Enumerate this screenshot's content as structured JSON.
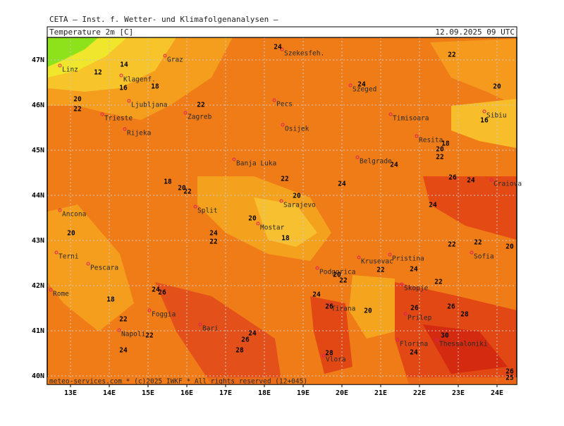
{
  "header": {
    "institute": "CETA — Inst. f. Wetter- und Klimafolgenanalysen —",
    "title": "Temperature 2m [C]",
    "valid_time": "12.09.2025 09 UTC",
    "footer": "meteo-services.com * (c)2025 IWKF * All rights reserved (12+045)"
  },
  "map": {
    "longitude_labels": [
      "13E",
      "14E",
      "15E",
      "16E",
      "17E",
      "18E",
      "19E",
      "20E",
      "21E",
      "22E",
      "23E",
      "24E"
    ],
    "latitude_labels": [
      "47N",
      "46N",
      "45N",
      "44N",
      "43N",
      "42N",
      "41N",
      "40N"
    ],
    "cities": [
      "Linz",
      "Graz",
      "Szekesfeh.",
      "Klagenf.",
      "Ljubljana",
      "Zagreb",
      "Trieste",
      "Rijeka",
      "Pecs",
      "Szeged",
      "Timisoara",
      "Osijek",
      "Sibiu",
      "Resita",
      "Banja Luka",
      "Belgrade",
      "Craiova",
      "Sarajevo",
      "Ancona",
      "Split",
      "Mostar",
      "Terni",
      "Pescara",
      "Pristina",
      "Krusevac",
      "Podgorica",
      "Sofia",
      "Rome",
      "Skopje",
      "Prilep",
      "Foggia",
      "Napoli",
      "Bari",
      "Tirana",
      "Florina",
      "Thessaloniki",
      "Vlora"
    ],
    "contour_labels": [
      14,
      12,
      16,
      18,
      20,
      22,
      22,
      24,
      24,
      22,
      20,
      16,
      18,
      20,
      22,
      24,
      22,
      24,
      26,
      24,
      18,
      20,
      22,
      20,
      24,
      20,
      24,
      22,
      18,
      20,
      22,
      22,
      20,
      20,
      22,
      22,
      24,
      22,
      24,
      26,
      24,
      18,
      26,
      26,
      26,
      28,
      20,
      22,
      22,
      24,
      26,
      24,
      28,
      28,
      24,
      30,
      26,
      25
    ]
  }
}
